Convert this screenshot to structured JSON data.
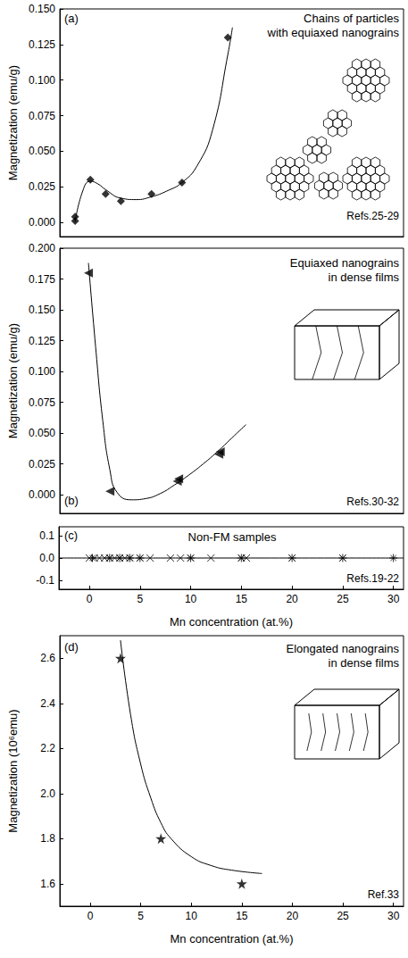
{
  "chart_data": [
    {
      "type": "scatter",
      "panel": "(a)",
      "annotation": [
        "Chains of particles",
        "with equiaxed nanograins"
      ],
      "reference": "Refs.25-29",
      "ylabel": "Magnetization (emu/g)",
      "xlim": [
        -1,
        21.5
      ],
      "ylim": [
        -0.01,
        0.15
      ],
      "yticks": [
        {
          "value": 0,
          "label": "0.000"
        },
        0.025,
        {
          "value": 0.05,
          "label": "0.050"
        },
        0.075,
        {
          "value": 0.1,
          "label": "0.100"
        },
        0.125,
        {
          "value": 0.15,
          "label": "0.150"
        }
      ],
      "tick_labels": "y",
      "series": [
        {
          "type": "scatter",
          "marker": "diamond",
          "color": "#000000",
          "x": [
            0,
            0,
            1,
            2,
            3,
            5,
            7,
            10
          ],
          "values": [
            0.001,
            0.004,
            0.03,
            0.02,
            0.015,
            0.02,
            0.028,
            0.13
          ]
        },
        {
          "type": "line",
          "line_style": "solid",
          "color": "#000000",
          "x": [
            0,
            0.5,
            1,
            1.5,
            2,
            3,
            4,
            5,
            6,
            7,
            8,
            9,
            10,
            10.3
          ],
          "values": [
            0,
            0.022,
            0.029,
            0.027,
            0.023,
            0.017,
            0.016,
            0.018,
            0.022,
            0.028,
            0.04,
            0.065,
            0.118,
            0.137
          ]
        }
      ]
    },
    {
      "type": "scatter",
      "panel": "(b)",
      "annotation": [
        "Equiaxed nanograins",
        "in dense films"
      ],
      "reference": "Refs.30-32",
      "ylabel": "Magnetization (emu/g)",
      "xlim": [
        -2,
        22
      ],
      "ylim": [
        -0.015,
        0.2
      ],
      "yticks": [
        {
          "value": 0,
          "label": "0.000"
        },
        0.025,
        {
          "value": 0.05,
          "label": "0.050"
        },
        0.075,
        {
          "value": 0.1,
          "label": "0.100"
        },
        0.125,
        {
          "value": 0.15,
          "label": "0.150"
        },
        0.175,
        {
          "value": 0.2,
          "label": "0.200"
        }
      ],
      "tick_labels": "y",
      "series": [
        {
          "type": "scatter",
          "marker": "triangle-left",
          "color": "#000000",
          "x": [
            0,
            1.5,
            6.2,
            6.3,
            9.1,
            9.2
          ],
          "values": [
            0.18,
            0.003,
            0.011,
            0.013,
            0.033,
            0.035
          ]
        },
        {
          "type": "line",
          "line_style": "solid",
          "color": "#000000",
          "x": [
            0,
            0.5,
            1,
            1.5,
            2,
            3,
            4,
            5,
            6,
            7,
            8,
            9,
            10,
            11
          ],
          "values": [
            0.188,
            0.12,
            0.06,
            0.02,
            0.002,
            -0.004,
            -0.003,
            0.001,
            0.008,
            0.016,
            0.025,
            0.035,
            0.046,
            0.057
          ]
        }
      ]
    },
    {
      "type": "scatter",
      "panel": "(c)",
      "annotation": [
        "Non-FM samples"
      ],
      "reference": "Refs.19-22",
      "xlabel": "Mn concentration (at.%)",
      "xlim": [
        -3,
        31
      ],
      "ylim": [
        -0.14,
        0.14
      ],
      "xticks": [
        0,
        5,
        10,
        15,
        20,
        25,
        30
      ],
      "yticks": [
        -0.1,
        {
          "value": 0,
          "label": "0.0"
        },
        0.1
      ],
      "series": [
        {
          "type": "scatter",
          "marker": "x",
          "color": "#000000",
          "x": [
            0,
            0.5,
            1,
            1.5,
            2,
            2.5,
            3,
            3.5,
            4,
            5,
            6,
            8,
            9,
            10,
            12,
            15,
            15.5,
            20,
            25
          ],
          "values": [
            0,
            0,
            0,
            0,
            0,
            0,
            0,
            0,
            0,
            0,
            0,
            0,
            0,
            0,
            0,
            0,
            0,
            0,
            0
          ]
        },
        {
          "type": "scatter",
          "marker": "asterisk",
          "color": "#000000",
          "x": [
            0.3,
            2,
            3,
            4,
            5,
            10,
            15,
            20,
            25,
            30
          ],
          "values": [
            0,
            0,
            0,
            0,
            0,
            0,
            0,
            0,
            0,
            0
          ]
        },
        {
          "type": "line",
          "line_style": "solid",
          "color": "#000000",
          "x": [
            -3,
            31
          ],
          "values": [
            0,
            0
          ]
        }
      ]
    },
    {
      "type": "scatter",
      "panel": "(d)",
      "annotation": [
        "Elongated nanograins",
        "in dense films"
      ],
      "reference": "Ref.33",
      "xlabel": "Mn concentration (at.%)",
      "ylabel": "Magnetization (10⁶emu)",
      "xlim": [
        -3,
        31
      ],
      "ylim": [
        1.5,
        2.7
      ],
      "xticks": [
        0,
        5,
        10,
        15,
        20,
        25,
        30
      ],
      "yticks": [
        1.6,
        1.8,
        {
          "value": 2,
          "label": "2.0"
        },
        2.2,
        2.4,
        2.6
      ],
      "series": [
        {
          "type": "scatter",
          "marker": "star",
          "color": "#000000",
          "x": [
            3,
            7,
            15
          ],
          "values": [
            2.6,
            1.8,
            1.6
          ]
        },
        {
          "type": "line",
          "line_style": "solid",
          "color": "#000000",
          "x": [
            3,
            4,
            5,
            6,
            7,
            8,
            10,
            12,
            14,
            17
          ],
          "values": [
            2.68,
            2.35,
            2.13,
            1.98,
            1.87,
            1.8,
            1.72,
            1.68,
            1.66,
            1.645
          ]
        }
      ]
    }
  ]
}
